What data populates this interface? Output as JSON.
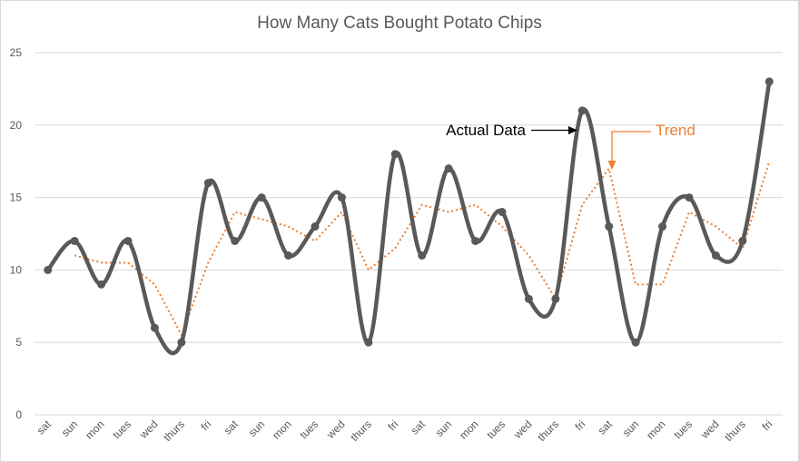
{
  "chart_data": {
    "type": "line",
    "title": "How Many Cats Bought Potato Chips",
    "xlabel": "",
    "ylabel": "",
    "ylim": [
      0,
      25
    ],
    "yticks": [
      0,
      5,
      10,
      15,
      20,
      25
    ],
    "grid": true,
    "categories": [
      "sat",
      "sun",
      "mon",
      "tues",
      "wed",
      "thurs",
      "fri",
      "sat",
      "sun",
      "mon",
      "tues",
      "wed",
      "thurs",
      "fri",
      "sat",
      "sun",
      "mon",
      "tues",
      "wed",
      "thurs",
      "fri",
      "sat",
      "sun",
      "mon",
      "tues",
      "wed",
      "thurs",
      "fri"
    ],
    "series": [
      {
        "values": [
          10,
          12,
          9,
          12,
          6,
          5,
          16,
          12,
          15,
          11,
          13,
          15,
          5,
          18,
          11,
          17,
          12,
          14,
          8,
          8,
          21,
          13,
          5,
          13,
          15,
          11,
          12,
          23
        ],
        "color": "#595959",
        "style": "smooth-with-markers"
      },
      {
        "values": [
          null,
          11,
          10.5,
          10.5,
          9,
          5.5,
          10.5,
          14,
          13.5,
          13,
          12,
          14,
          10,
          11.5,
          14.5,
          14,
          14.5,
          13,
          11,
          8,
          14.5,
          17,
          9,
          9,
          14,
          13,
          11.5,
          17.5
        ],
        "color": "#ED7D31",
        "style": "dotted"
      }
    ],
    "annotations": [
      {
        "text": "Actual Data",
        "color": "#000000",
        "points_to_index": 20
      },
      {
        "text": "Trend",
        "color": "#ED7D31",
        "points_to_index": 21
      }
    ]
  }
}
